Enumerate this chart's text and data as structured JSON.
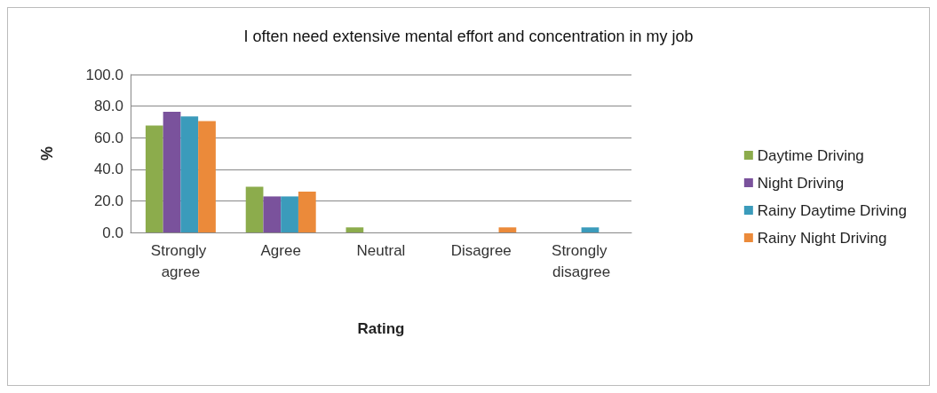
{
  "chart_data": {
    "type": "bar",
    "title": "I often need extensive mental effort and concentration in my job",
    "xlabel": "Rating",
    "ylabel": "%",
    "categories": [
      "Strongly agree",
      "Agree",
      "Neutral",
      "Disagree",
      "Strongly disagree"
    ],
    "series": [
      {
        "name": "Daytime Driving",
        "color": "#8cac4c",
        "values": [
          67.7,
          29.0,
          3.2,
          0,
          0
        ]
      },
      {
        "name": "Night Driving",
        "color": "#7a529c",
        "values": [
          76.4,
          22.8,
          0,
          0,
          0
        ]
      },
      {
        "name": "Rainy Daytime Driving",
        "color": "#3b9bbb",
        "values": [
          73.5,
          22.8,
          0,
          0,
          3.2
        ]
      },
      {
        "name": "Rainy Night Driving",
        "color": "#eb8a3a",
        "values": [
          70.5,
          25.9,
          0,
          3.2,
          0
        ]
      }
    ],
    "ylim": [
      0,
      100
    ],
    "yticks": [
      {
        "value": 0,
        "label": "0.0"
      },
      {
        "value": 20,
        "label": "20.0"
      },
      {
        "value": 40,
        "label": "40.0"
      },
      {
        "value": 60,
        "label": "60.0"
      },
      {
        "value": 80,
        "label": "80.0"
      },
      {
        "value": 100,
        "label": "100.0"
      }
    ],
    "grid": "y",
    "legend": "right"
  }
}
